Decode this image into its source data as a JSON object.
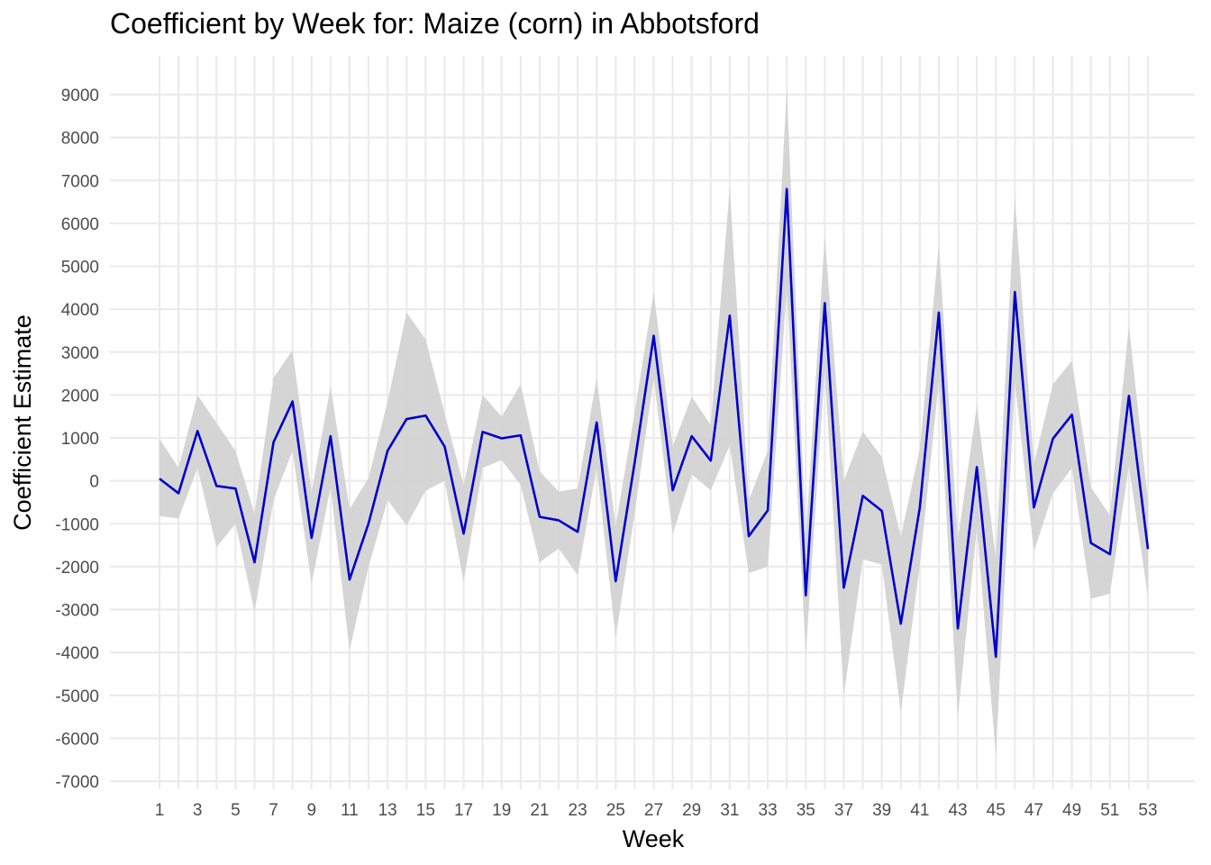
{
  "chart_data": {
    "type": "line",
    "title": "Coefficient by Week for: Maize (corn) in Abbotsford",
    "xlabel": "Week",
    "ylabel": "Coefficient Estimate",
    "xlim": [
      1,
      53
    ],
    "ylim": [
      -7000,
      9000
    ],
    "x_tick_labels": [
      "1",
      "3",
      "5",
      "7",
      "9",
      "11",
      "13",
      "15",
      "17",
      "19",
      "21",
      "23",
      "25",
      "27",
      "29",
      "31",
      "33",
      "35",
      "37",
      "39",
      "41",
      "43",
      "45",
      "47",
      "49",
      "51",
      "53"
    ],
    "y_tick_labels": [
      "9000",
      "8000",
      "7000",
      "6000",
      "5000",
      "4000",
      "3000",
      "2000",
      "1000",
      "0",
      "-1000",
      "-2000",
      "-3000",
      "-4000",
      "-5000",
      "-6000",
      "-7000"
    ],
    "grid": true,
    "line_color": "#0000cc",
    "ribbon_color": "#d3d3d3",
    "series": [
      {
        "x": [
          1,
          2,
          3,
          4,
          5,
          6,
          7,
          8,
          9,
          10,
          11,
          12,
          13,
          14,
          15,
          16,
          17,
          18,
          19,
          20,
          21,
          22,
          23,
          24,
          25,
          26,
          27,
          28,
          29,
          30,
          31,
          32,
          33,
          34,
          35,
          36,
          37,
          38,
          39,
          40,
          41,
          42,
          43,
          44,
          45,
          46,
          47,
          48,
          49,
          50,
          51,
          52,
          53
        ],
        "values": [
          50,
          -290,
          1160,
          -120,
          -180,
          -1900,
          900,
          1850,
          -1330,
          1040,
          -2300,
          -990,
          700,
          1440,
          1520,
          800,
          -1230,
          1140,
          990,
          1060,
          -840,
          -920,
          -1190,
          1360,
          -2340,
          430,
          3380,
          -220,
          1040,
          470,
          3850,
          -1290,
          -690,
          6800,
          -2670,
          4140,
          -2490,
          -350,
          -700,
          -3330,
          -620,
          3920,
          -3440,
          320,
          -4100,
          4400,
          -620,
          980,
          1540,
          -1450,
          -1710,
          1980,
          -1590
        ],
        "lower": [
          -820,
          -880,
          300,
          -1550,
          -1000,
          -3050,
          -450,
          700,
          -2400,
          -150,
          -3950,
          -2000,
          -450,
          -1040,
          -230,
          0,
          -2350,
          300,
          480,
          -100,
          -1900,
          -1580,
          -2200,
          300,
          -3650,
          -750,
          2400,
          -1250,
          150,
          -220,
          820,
          -2150,
          -2000,
          4500,
          -4050,
          2600,
          -5000,
          -1830,
          -1950,
          -5400,
          -1950,
          2300,
          -5500,
          -1100,
          -6400,
          2300,
          -1650,
          -300,
          300,
          -2750,
          -2630,
          350,
          -2700
        ],
        "upper": [
          980,
          300,
          2000,
          1350,
          700,
          -760,
          2400,
          3050,
          -270,
          2200,
          -660,
          70,
          1850,
          3920,
          3300,
          1570,
          -100,
          2000,
          1500,
          2250,
          220,
          -250,
          -180,
          2400,
          -1050,
          1600,
          4400,
          800,
          1960,
          1300,
          6850,
          -450,
          700,
          9150,
          -1300,
          5700,
          0,
          1150,
          550,
          -1300,
          750,
          5500,
          -1370,
          1750,
          -1800,
          6600,
          400,
          2250,
          2800,
          -150,
          -800,
          3620,
          -480
        ]
      }
    ]
  }
}
